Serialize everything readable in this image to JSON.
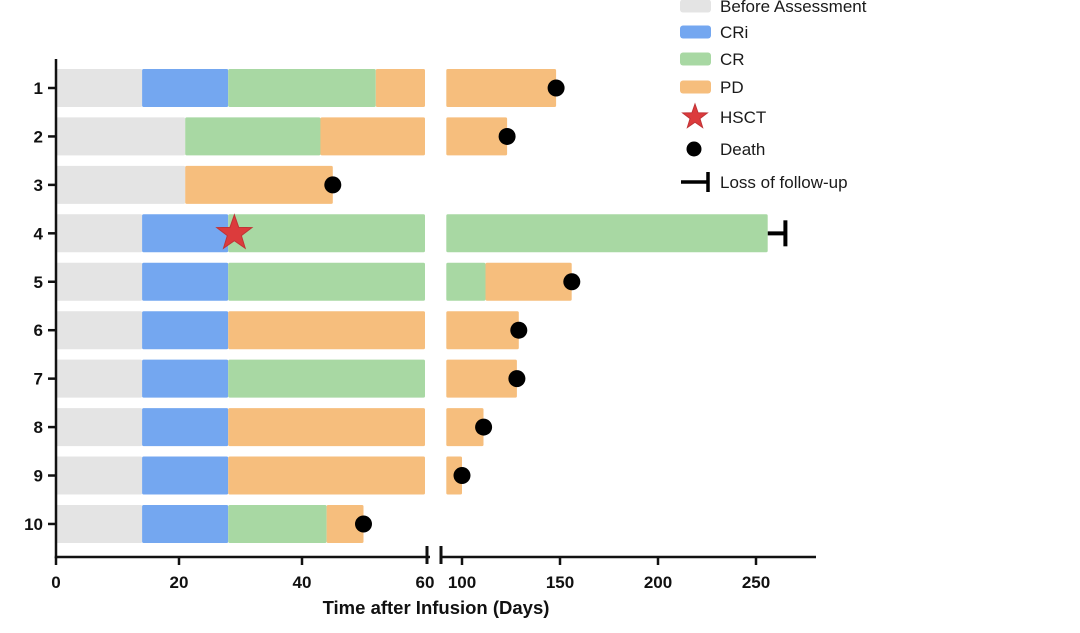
{
  "chart_data": {
    "type": "bar",
    "subtype": "swimmer-plot-broken-axis",
    "title": "",
    "xlabel": "Time after Infusion (Days)",
    "ylabel": "",
    "axis": {
      "left_segment": {
        "ticks": [
          0,
          20,
          40,
          60
        ],
        "domain": [
          0,
          60
        ]
      },
      "right_segment": {
        "ticks": [
          100,
          150,
          200,
          250
        ],
        "domain": [
          92,
          282
        ]
      },
      "break_between": [
        60,
        92
      ],
      "grid": false
    },
    "colors": {
      "before_assessment": "#E4E4E4",
      "cri": "#74A7F0",
      "cr": "#A8D8A3",
      "pd": "#F6BE7D",
      "hsct_star": "#DC3B3C",
      "death_dot": "#000000",
      "axis": "#111111"
    },
    "legend": [
      {
        "label": "Before Assessment",
        "glyph": "swatch",
        "color": "#E4E4E4"
      },
      {
        "label": "CRi",
        "glyph": "swatch",
        "color": "#74A7F0"
      },
      {
        "label": "CR",
        "glyph": "swatch",
        "color": "#A8D8A3"
      },
      {
        "label": "PD",
        "glyph": "swatch",
        "color": "#F6BE7D"
      },
      {
        "label": "HSCT",
        "glyph": "star",
        "color": "#DC3B3C"
      },
      {
        "label": "Death",
        "glyph": "dot",
        "color": "#000000"
      },
      {
        "label": "Loss of follow-up",
        "glyph": "tbar",
        "color": "#000000"
      }
    ],
    "legend_position": "top-right",
    "patients": [
      {
        "id": "1",
        "segments": [
          {
            "status": "Before Assessment",
            "start": 0,
            "end": 14
          },
          {
            "status": "CRi",
            "start": 14,
            "end": 28
          },
          {
            "status": "CR",
            "start": 28,
            "end": 52
          },
          {
            "status": "PD",
            "start": 52,
            "end": 148
          }
        ],
        "events": [
          {
            "type": "Death",
            "day": 148
          }
        ]
      },
      {
        "id": "2",
        "segments": [
          {
            "status": "Before Assessment",
            "start": 0,
            "end": 21
          },
          {
            "status": "CR",
            "start": 21,
            "end": 43
          },
          {
            "status": "PD",
            "start": 43,
            "end": 123
          }
        ],
        "events": [
          {
            "type": "Death",
            "day": 123
          }
        ]
      },
      {
        "id": "3",
        "segments": [
          {
            "status": "Before Assessment",
            "start": 0,
            "end": 21
          },
          {
            "status": "PD",
            "start": 21,
            "end": 45
          }
        ],
        "events": [
          {
            "type": "Death",
            "day": 45
          }
        ]
      },
      {
        "id": "4",
        "segments": [
          {
            "status": "Before Assessment",
            "start": 0,
            "end": 14
          },
          {
            "status": "CRi",
            "start": 14,
            "end": 28
          },
          {
            "status": "CR",
            "start": 28,
            "end": 256
          }
        ],
        "events": [
          {
            "type": "HSCT",
            "day": 29
          },
          {
            "type": "Loss of follow-up",
            "day": 265
          }
        ]
      },
      {
        "id": "5",
        "segments": [
          {
            "status": "Before Assessment",
            "start": 0,
            "end": 14
          },
          {
            "status": "CRi",
            "start": 14,
            "end": 28
          },
          {
            "status": "CR",
            "start": 28,
            "end": 112
          },
          {
            "status": "PD",
            "start": 112,
            "end": 156
          }
        ],
        "events": [
          {
            "type": "Death",
            "day": 156
          }
        ]
      },
      {
        "id": "6",
        "segments": [
          {
            "status": "Before Assessment",
            "start": 0,
            "end": 14
          },
          {
            "status": "CRi",
            "start": 14,
            "end": 28
          },
          {
            "status": "PD",
            "start": 28,
            "end": 129
          }
        ],
        "events": [
          {
            "type": "Death",
            "day": 129
          }
        ]
      },
      {
        "id": "7",
        "segments": [
          {
            "status": "Before Assessment",
            "start": 0,
            "end": 14
          },
          {
            "status": "CRi",
            "start": 14,
            "end": 28
          },
          {
            "status": "CR",
            "start": 28,
            "end": 60
          },
          {
            "status": "PD",
            "start": 60,
            "end": 128
          }
        ],
        "events": [
          {
            "type": "Death",
            "day": 128
          }
        ]
      },
      {
        "id": "8",
        "segments": [
          {
            "status": "Before Assessment",
            "start": 0,
            "end": 14
          },
          {
            "status": "CRi",
            "start": 14,
            "end": 28
          },
          {
            "status": "PD",
            "start": 28,
            "end": 111
          }
        ],
        "events": [
          {
            "type": "Death",
            "day": 111
          }
        ]
      },
      {
        "id": "9",
        "segments": [
          {
            "status": "Before Assessment",
            "start": 0,
            "end": 14
          },
          {
            "status": "CRi",
            "start": 14,
            "end": 28
          },
          {
            "status": "PD",
            "start": 28,
            "end": 100
          }
        ],
        "events": [
          {
            "type": "Death",
            "day": 100
          }
        ]
      },
      {
        "id": "10",
        "segments": [
          {
            "status": "Before Assessment",
            "start": 0,
            "end": 14
          },
          {
            "status": "CRi",
            "start": 14,
            "end": 28
          },
          {
            "status": "CR",
            "start": 28,
            "end": 44
          },
          {
            "status": "PD",
            "start": 44,
            "end": 50
          }
        ],
        "events": [
          {
            "type": "Death",
            "day": 50
          }
        ]
      }
    ]
  }
}
